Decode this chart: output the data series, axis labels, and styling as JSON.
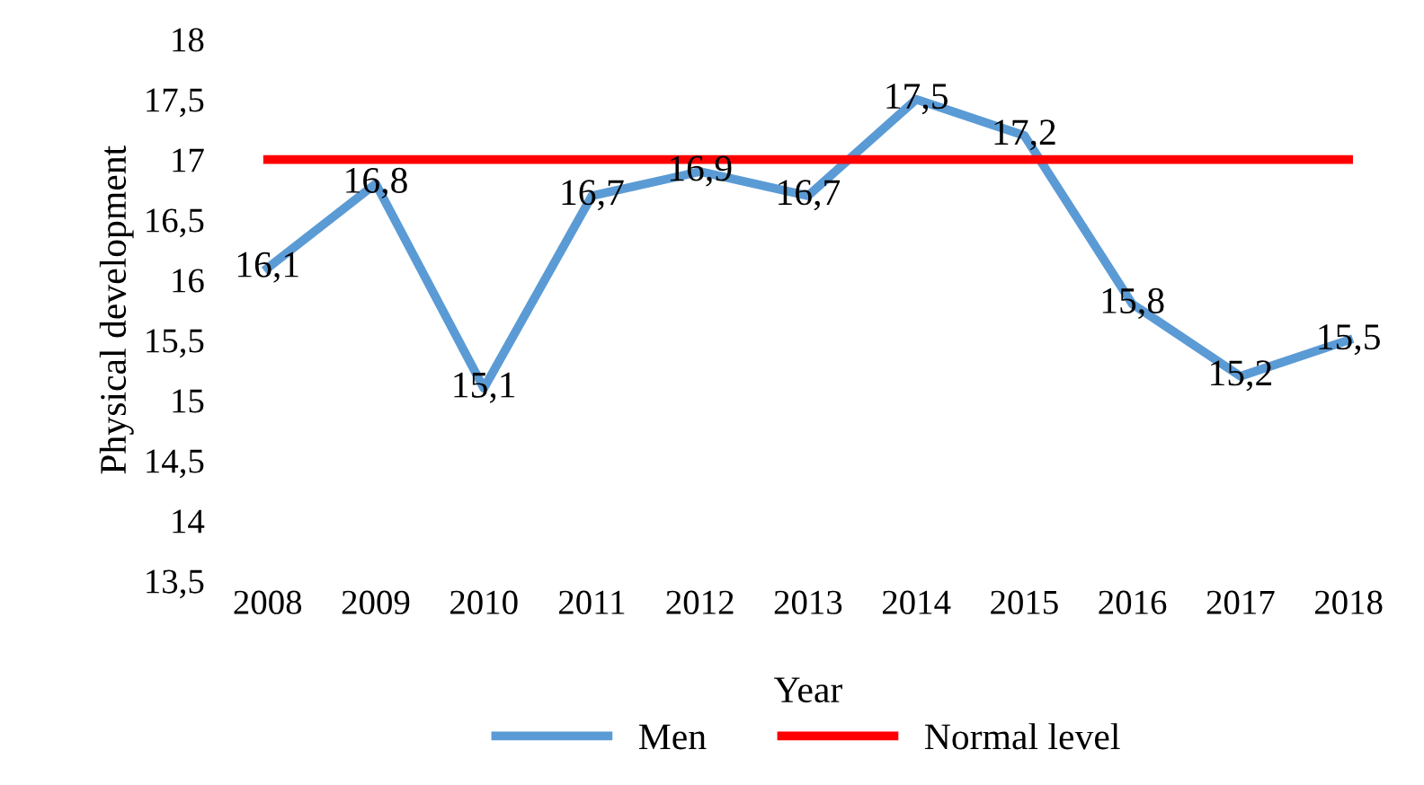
{
  "chart_data": {
    "type": "line",
    "xlabel": "Year",
    "ylabel": "Physical development",
    "categories": [
      "2008",
      "2009",
      "2010",
      "2011",
      "2012",
      "2013",
      "2014",
      "2015",
      "2016",
      "2017",
      "2018"
    ],
    "series": [
      {
        "name": "Men",
        "color": "#5b9bd5",
        "values": [
          16.1,
          16.8,
          15.1,
          16.7,
          16.9,
          16.7,
          17.5,
          17.2,
          15.8,
          15.2,
          15.5
        ],
        "value_labels": [
          "16,1",
          "16,8",
          "15,1",
          "16,7",
          "16,9",
          "16,7",
          "17,5",
          "17,2",
          "15,8",
          "15,2",
          "15,5"
        ]
      },
      {
        "name": "Normal level",
        "color": "#ff0000",
        "values": [
          17,
          17,
          17,
          17,
          17,
          17,
          17,
          17,
          17,
          17,
          17
        ]
      }
    ],
    "ylim": [
      13.5,
      18
    ],
    "yticks": [
      {
        "value": 13.5,
        "label": "13,5"
      },
      {
        "value": 14,
        "label": "14"
      },
      {
        "value": 14.5,
        "label": "14,5"
      },
      {
        "value": 15,
        "label": "15"
      },
      {
        "value": 15.5,
        "label": "15,5"
      },
      {
        "value": 16,
        "label": "16"
      },
      {
        "value": 16.5,
        "label": "16,5"
      },
      {
        "value": 17,
        "label": "17"
      },
      {
        "value": 17.5,
        "label": "17,5"
      },
      {
        "value": 18,
        "label": "18"
      }
    ],
    "grid": false,
    "legend": "bottom",
    "marker": "none",
    "line_style": "solid"
  }
}
